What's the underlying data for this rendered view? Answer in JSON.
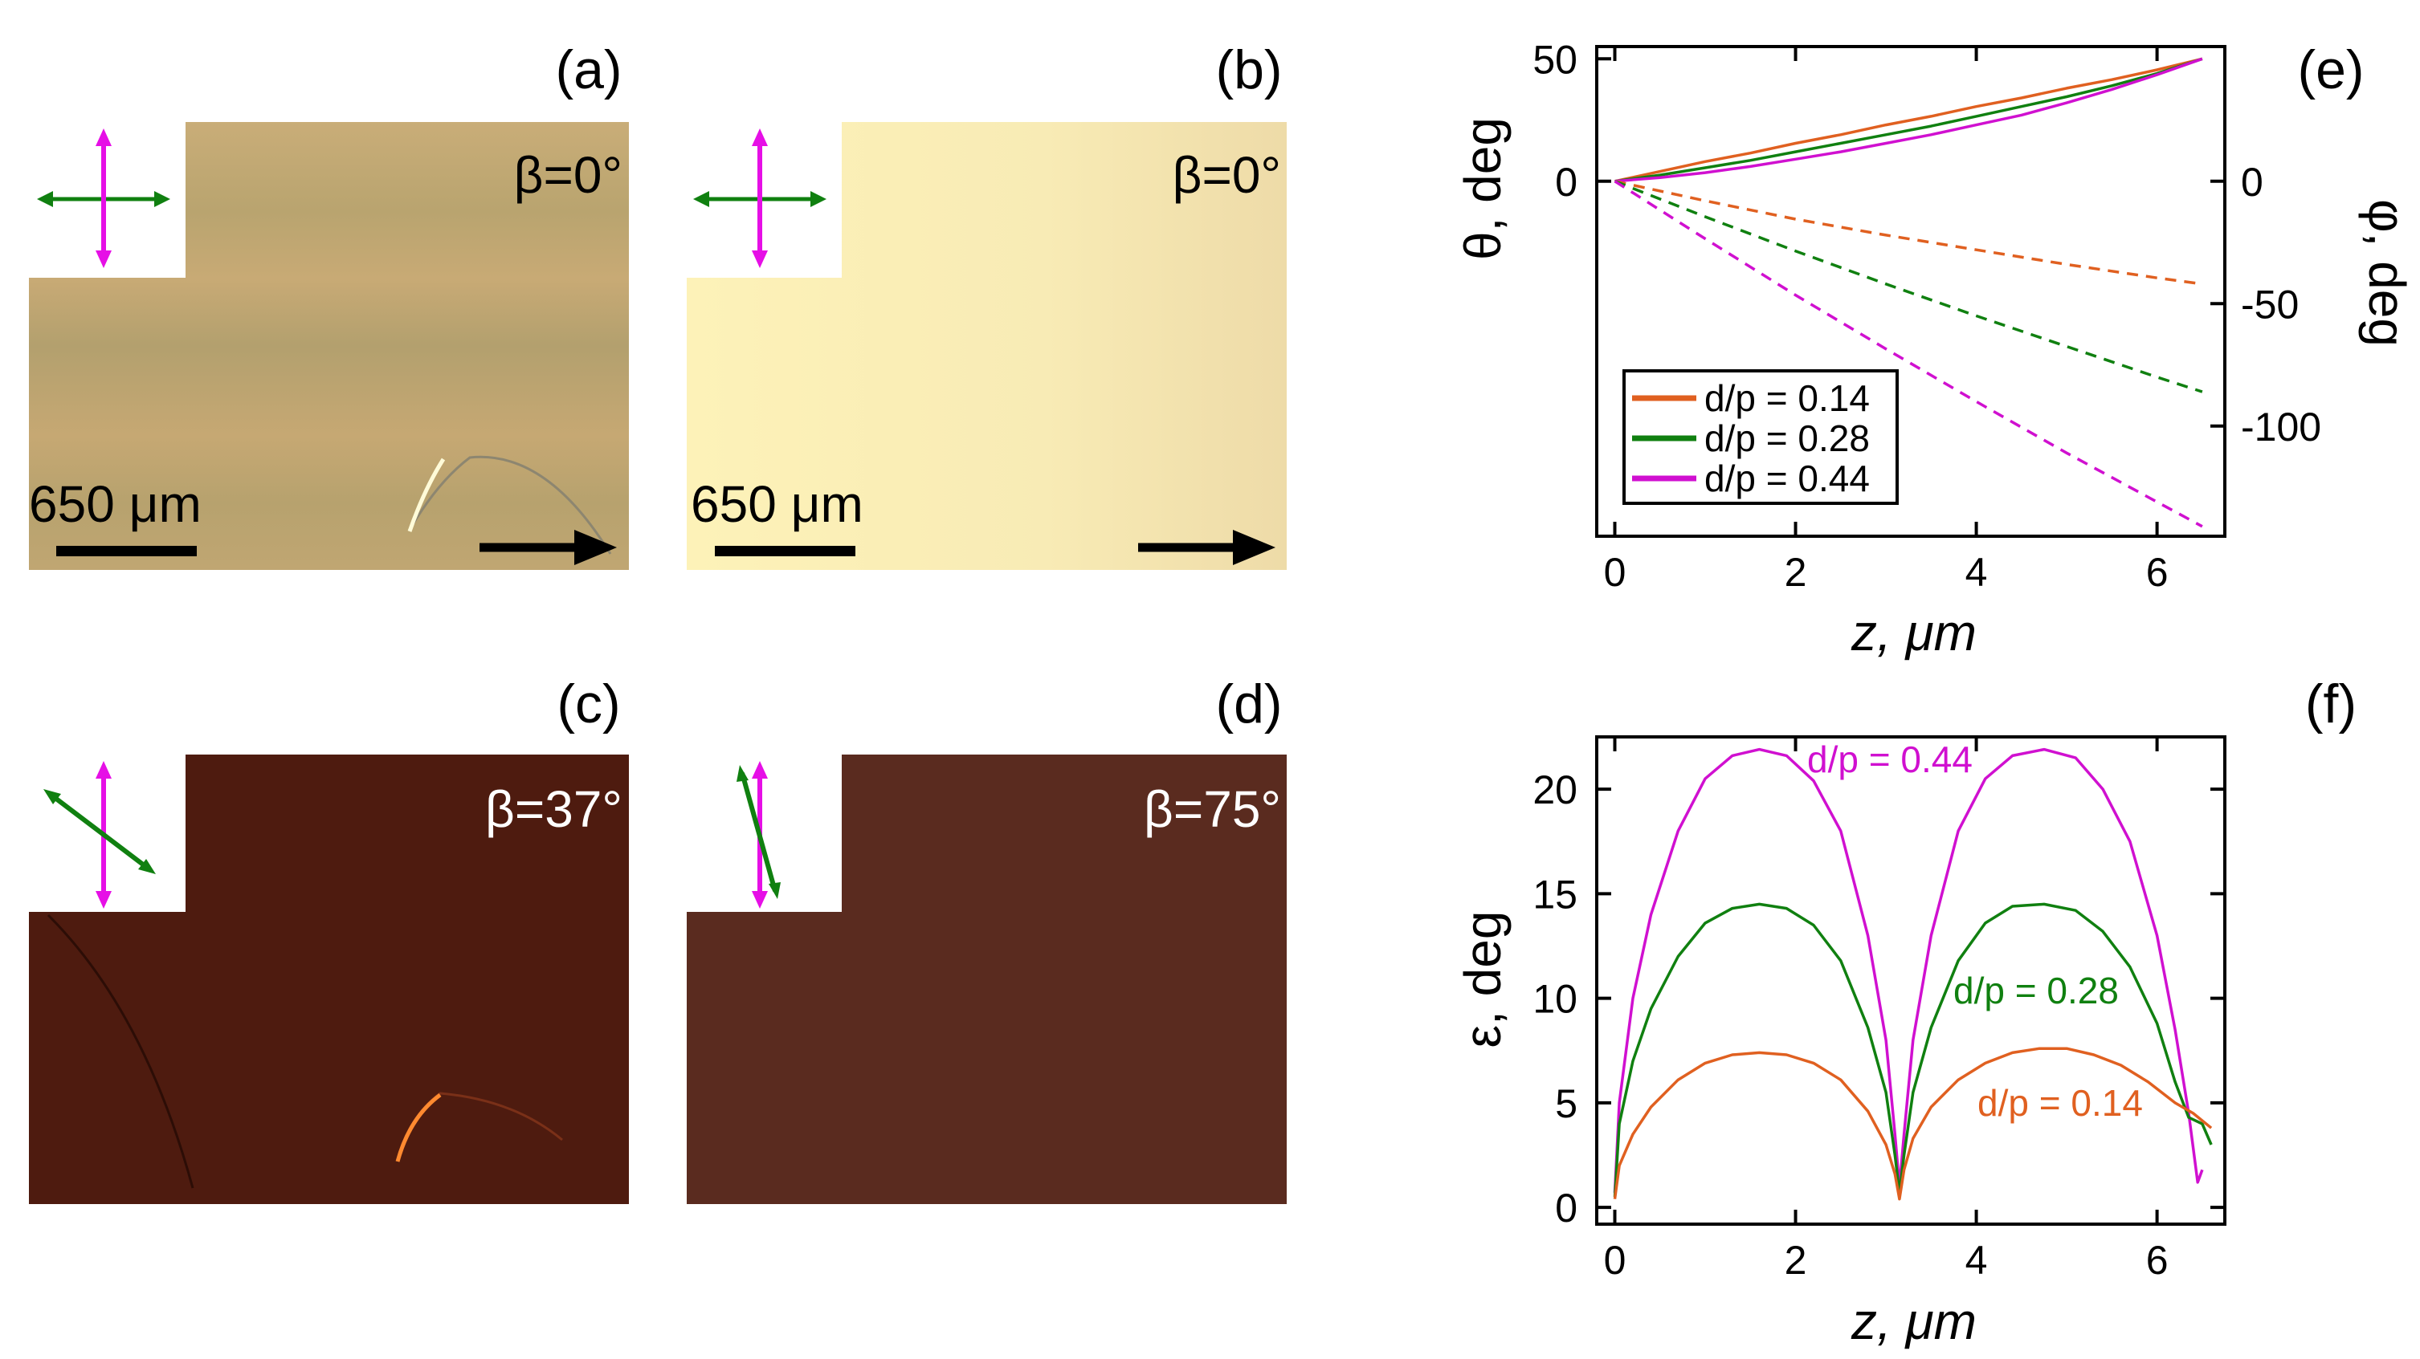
{
  "panels": {
    "a": {
      "label": "(a)",
      "beta": "β=0°",
      "scalebar": "650 μm"
    },
    "b": {
      "label": "(b)",
      "beta": "β=0°",
      "scalebar": "650 μm"
    },
    "c": {
      "label": "(c)",
      "beta": "β=37°"
    },
    "d": {
      "label": "(d)",
      "beta": "β=75°"
    }
  },
  "colors": {
    "orange": "#e06020",
    "green": "#108010",
    "magenta": "#d010d0",
    "img_a": "#c2a774",
    "img_b": "#faeeb4",
    "img_c": "#4e1b0f",
    "img_d": "#5a2b1f"
  },
  "chart_data": [
    {
      "panel": "(e)",
      "type": "line",
      "xlabel": "z, μm",
      "ylabel": "θ, deg",
      "ylabel_right": "φ, deg",
      "xlim": [
        -0.2,
        6.75
      ],
      "ylim": [
        -145,
        55
      ],
      "xticks": [
        0,
        2,
        4,
        6
      ],
      "yticks_left": [
        0,
        50
      ],
      "yticks_right": [
        0,
        -50,
        -100
      ],
      "legend": [
        "d/p = 0.14",
        "d/p = 0.28",
        "d/p = 0.44"
      ],
      "legend_position": "bottom-left",
      "series": [
        {
          "name": "d/p = 0.14",
          "axis": "theta",
          "style": "solid",
          "color": "orange",
          "x": [
            0,
            0.5,
            1,
            1.5,
            2,
            2.5,
            3,
            3.5,
            4,
            4.5,
            5,
            5.5,
            6,
            6.5
          ],
          "y": [
            0,
            4,
            8,
            11.5,
            15.5,
            19,
            23,
            26.5,
            30.5,
            34,
            38,
            41.5,
            45.5,
            50
          ]
        },
        {
          "name": "d/p = 0.28",
          "axis": "theta",
          "style": "solid",
          "color": "green",
          "x": [
            0,
            0.5,
            1,
            1.5,
            2,
            2.5,
            3,
            3.5,
            4,
            4.5,
            5,
            5.5,
            6,
            6.5
          ],
          "y": [
            0,
            2.5,
            5.5,
            8.5,
            12,
            15.5,
            19,
            22.5,
            26.5,
            30.5,
            34.5,
            39,
            44,
            50
          ]
        },
        {
          "name": "d/p = 0.44",
          "axis": "theta",
          "style": "solid",
          "color": "magenta",
          "x": [
            0,
            0.5,
            1,
            1.5,
            2,
            2.5,
            3,
            3.5,
            4,
            4.5,
            5,
            5.5,
            6,
            6.5
          ],
          "y": [
            0,
            1.5,
            3.5,
            6,
            9,
            12,
            15.5,
            19,
            23,
            27,
            32,
            37.5,
            43.5,
            50
          ]
        },
        {
          "name": "d/p = 0.14",
          "axis": "phi",
          "style": "dashed",
          "color": "orange",
          "x": [
            0,
            1,
            2,
            3,
            4,
            5,
            6,
            6.5
          ],
          "y": [
            0,
            -8,
            -15.5,
            -22,
            -28,
            -34,
            -39.5,
            -42
          ]
        },
        {
          "name": "d/p = 0.28",
          "axis": "phi",
          "style": "dashed",
          "color": "green",
          "x": [
            0,
            1,
            2,
            3,
            4,
            5,
            6,
            6.5
          ],
          "y": [
            0,
            -14.5,
            -28.5,
            -42,
            -55,
            -67.5,
            -80,
            -86
          ]
        },
        {
          "name": "d/p = 0.44",
          "axis": "phi",
          "style": "dashed",
          "color": "magenta",
          "x": [
            0,
            1,
            2,
            3,
            4,
            5,
            6,
            6.5
          ],
          "y": [
            0,
            -23.5,
            -46.5,
            -68.5,
            -90,
            -111,
            -131,
            -141
          ]
        }
      ]
    },
    {
      "panel": "(f)",
      "type": "line",
      "xlabel": "z, μm",
      "ylabel": "ε, deg",
      "xlim": [
        -0.2,
        6.75
      ],
      "ylim": [
        -0.8,
        22.5
      ],
      "xticks": [
        0,
        2,
        4,
        6
      ],
      "yticks": [
        0,
        5,
        10,
        15,
        20
      ],
      "annotations": [
        "d/p = 0.44",
        "d/p = 0.28",
        "d/p = 0.14"
      ],
      "series": [
        {
          "name": "d/p = 0.44",
          "color": "magenta",
          "x": [
            0,
            0.05,
            0.2,
            0.4,
            0.7,
            1.0,
            1.3,
            1.6,
            1.9,
            2.2,
            2.5,
            2.8,
            3.0,
            3.1,
            3.15,
            3.2,
            3.3,
            3.5,
            3.8,
            4.1,
            4.4,
            4.75,
            5.1,
            5.4,
            5.7,
            6.0,
            6.2,
            6.35,
            6.45,
            6.5
          ],
          "y": [
            0.7,
            5,
            10,
            14,
            18,
            20.5,
            21.6,
            21.9,
            21.6,
            20.4,
            18,
            13,
            8,
            3.5,
            1.0,
            3.5,
            8,
            13,
            18,
            20.5,
            21.6,
            21.9,
            21.5,
            20,
            17.5,
            13,
            8.5,
            4.5,
            1.2,
            1.8
          ]
        },
        {
          "name": "d/p = 0.28",
          "color": "green",
          "x": [
            0,
            0.05,
            0.2,
            0.4,
            0.7,
            1.0,
            1.3,
            1.6,
            1.9,
            2.2,
            2.5,
            2.8,
            3.0,
            3.1,
            3.15,
            3.2,
            3.3,
            3.5,
            3.8,
            4.1,
            4.4,
            4.75,
            5.1,
            5.4,
            5.7,
            6.0,
            6.2,
            6.35,
            6.5,
            6.6
          ],
          "y": [
            0.5,
            4,
            7,
            9.5,
            12,
            13.6,
            14.3,
            14.5,
            14.3,
            13.5,
            11.8,
            8.6,
            5.5,
            2.5,
            0.7,
            2.5,
            5.5,
            8.6,
            11.8,
            13.6,
            14.4,
            14.5,
            14.2,
            13.2,
            11.5,
            8.8,
            6,
            4.3,
            4,
            3
          ]
        },
        {
          "name": "d/p = 0.14",
          "color": "orange",
          "x": [
            0,
            0.05,
            0.2,
            0.4,
            0.7,
            1.0,
            1.3,
            1.6,
            1.9,
            2.2,
            2.5,
            2.8,
            3.0,
            3.1,
            3.15,
            3.2,
            3.3,
            3.5,
            3.8,
            4.1,
            4.4,
            4.7,
            5.0,
            5.3,
            5.6,
            5.9,
            6.2,
            6.4,
            6.6
          ],
          "y": [
            0.4,
            2,
            3.5,
            4.8,
            6.1,
            6.9,
            7.3,
            7.4,
            7.3,
            6.9,
            6.1,
            4.6,
            3.0,
            1.6,
            0.4,
            1.8,
            3.3,
            4.8,
            6.1,
            6.9,
            7.4,
            7.6,
            7.6,
            7.3,
            6.8,
            6.0,
            5.0,
            4.5,
            3.8
          ]
        }
      ]
    }
  ]
}
